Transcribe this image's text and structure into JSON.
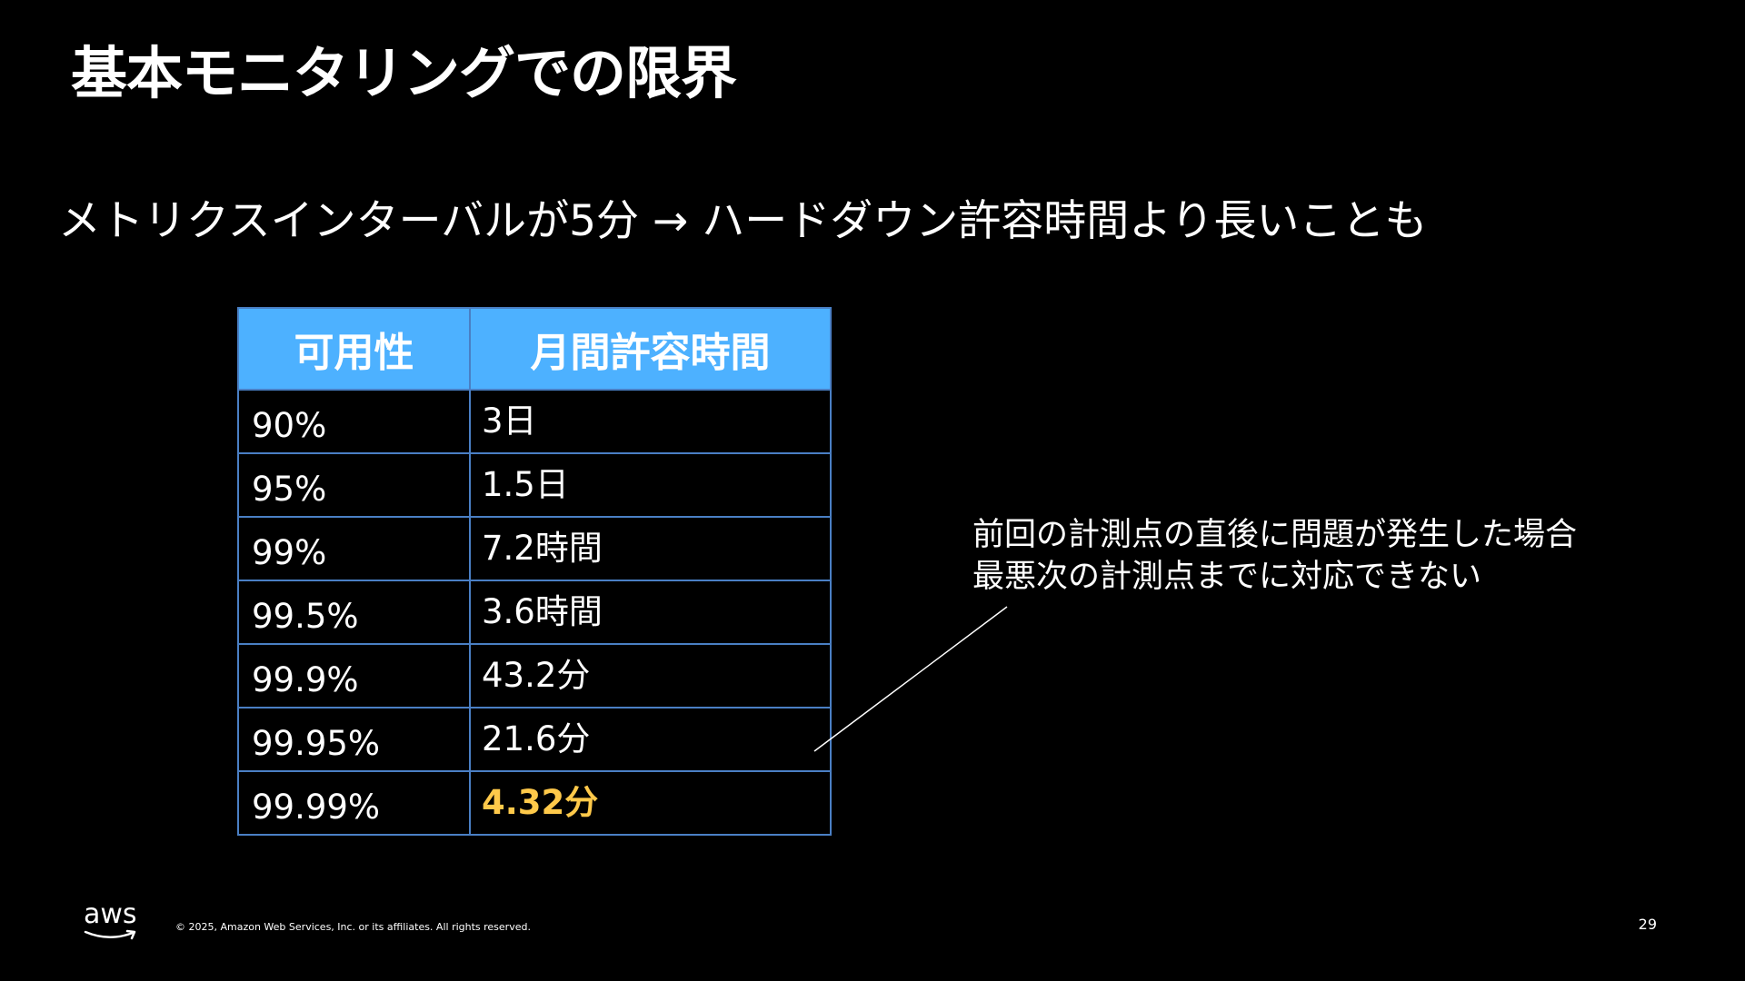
{
  "slide": {
    "title": "基本モニタリングでの限界",
    "subtitle": "メトリクスインターバルが5分 → ハードダウン許容時間より長いことも"
  },
  "table": {
    "headers": {
      "availability": "可用性",
      "downtime": "月間許容時間"
    },
    "rows": [
      {
        "availability": "90%",
        "downtime": "3日"
      },
      {
        "availability": "95%",
        "downtime": "1.5日"
      },
      {
        "availability": "99%",
        "downtime": "7.2時間"
      },
      {
        "availability": "99.5%",
        "downtime": "3.6時間"
      },
      {
        "availability": "99.9%",
        "downtime": "43.2分"
      },
      {
        "availability": "99.95%",
        "downtime": "21.6分"
      },
      {
        "availability": "99.99%",
        "downtime": "4.32分"
      }
    ],
    "highlight_color": "#ffc94a",
    "header_color": "#4db1ff"
  },
  "callout": {
    "line1": "前回の計測点の直後に問題が発生した場合",
    "line2": "最悪次の計測点までに対応できない"
  },
  "footer": {
    "logo_text": "aws",
    "copyright": "© 2025, Amazon Web Services, Inc. or its affiliates. All rights reserved.",
    "page_number": "29"
  }
}
